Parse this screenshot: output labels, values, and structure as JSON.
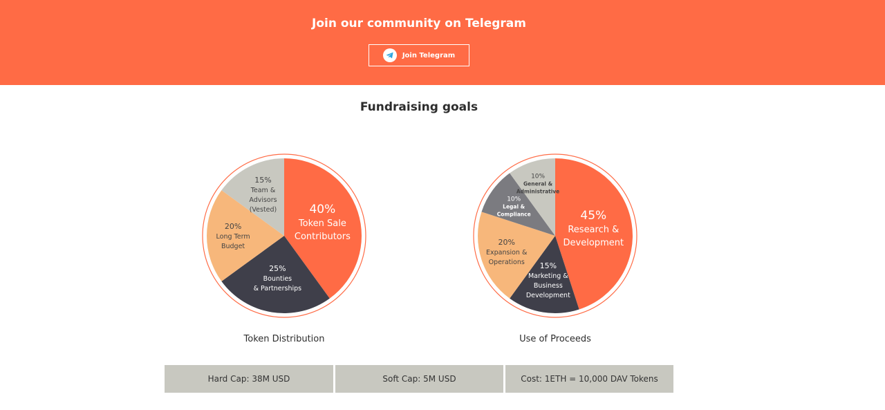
{
  "banner": {
    "title": "Join our community on Telegram",
    "button_label": "Join Telegram",
    "background_color": "#ff6b45"
  },
  "section": {
    "title": "Fundraising goals"
  },
  "chart_data": [
    {
      "type": "pie",
      "title": "Token Distribution",
      "slices": [
        {
          "value": 40,
          "lines": [
            "40%",
            "Token Sale",
            "Contributors"
          ],
          "color": "#ff6b45"
        },
        {
          "value": 25,
          "lines": [
            "25%",
            "Bounties",
            "& Partnerships"
          ],
          "color": "#3f3f4a"
        },
        {
          "value": 20,
          "lines": [
            "20%",
            "Long Term",
            "Budget"
          ],
          "color": "#f7b77b"
        },
        {
          "value": 15,
          "lines": [
            "15%",
            "Team &",
            "Advisors",
            "(Vested)"
          ],
          "color": "#c8c8c0"
        }
      ]
    },
    {
      "type": "pie",
      "title": "Use of Proceeds",
      "slices": [
        {
          "value": 45,
          "lines": [
            "45%",
            "Research &",
            "Development"
          ],
          "color": "#ff6b45"
        },
        {
          "value": 15,
          "lines": [
            "15%",
            "Marketing &",
            "Business",
            "Development"
          ],
          "color": "#3f3f4a"
        },
        {
          "value": 20,
          "lines": [
            "20%",
            "Expansion &",
            "Operations"
          ],
          "color": "#f7b77b"
        },
        {
          "value": 10,
          "lines": [
            "10%",
            "Legal &",
            "Compliance"
          ],
          "color": "#7b7b80"
        },
        {
          "value": 10,
          "lines": [
            "10%",
            "General &",
            "Administrative"
          ],
          "color": "#c8c8c0"
        }
      ]
    }
  ],
  "stats": [
    {
      "label": "Hard Cap: 38M USD"
    },
    {
      "label": "Soft Cap: 5M USD"
    },
    {
      "label": "Cost: 1ETH = 10,000 DAV Tokens"
    }
  ],
  "icons": {
    "telegram": "telegram-icon"
  }
}
